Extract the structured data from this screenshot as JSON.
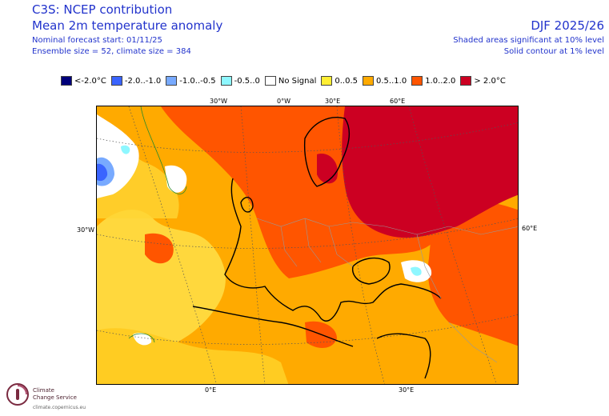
{
  "header": {
    "title": "C3S: NCEP contribution",
    "subtitle": "Mean 2m temperature anomaly",
    "forecast_start": "Nominal forecast start: 01/11/25",
    "ensemble": "Ensemble size = 52, climate size = 384",
    "season": "DJF 2025/26",
    "shading_note": "Shaded areas significant at 10% level",
    "contour_note": "Solid contour at 1% level"
  },
  "legend": [
    {
      "label": "<-2.0°C",
      "color": "#00007a"
    },
    {
      "label": "-2.0..-1.0",
      "color": "#3a64ff"
    },
    {
      "label": "-1.0..-0.5",
      "color": "#78aaff"
    },
    {
      "label": "-0.5..0",
      "color": "#8ef7ff"
    },
    {
      "label": "No Signal",
      "color": "#ffffff"
    },
    {
      "label": "0..0.5",
      "color": "#ffee33"
    },
    {
      "label": "0.5..1.0",
      "color": "#ffaa00"
    },
    {
      "label": "1.0..2.0",
      "color": "#ff5500"
    },
    {
      "label": "> 2.0°C",
      "color": "#cc0022"
    }
  ],
  "axis_labels": {
    "top": [
      "30°W",
      "0°W",
      "30°E",
      "60°E"
    ],
    "bottom": [
      "0°E",
      "30°E"
    ],
    "left": "30°W",
    "right": "60°E"
  },
  "logo": {
    "line1": "Climate",
    "line2": "Change Service",
    "url": "climate.copernicus.eu"
  }
}
